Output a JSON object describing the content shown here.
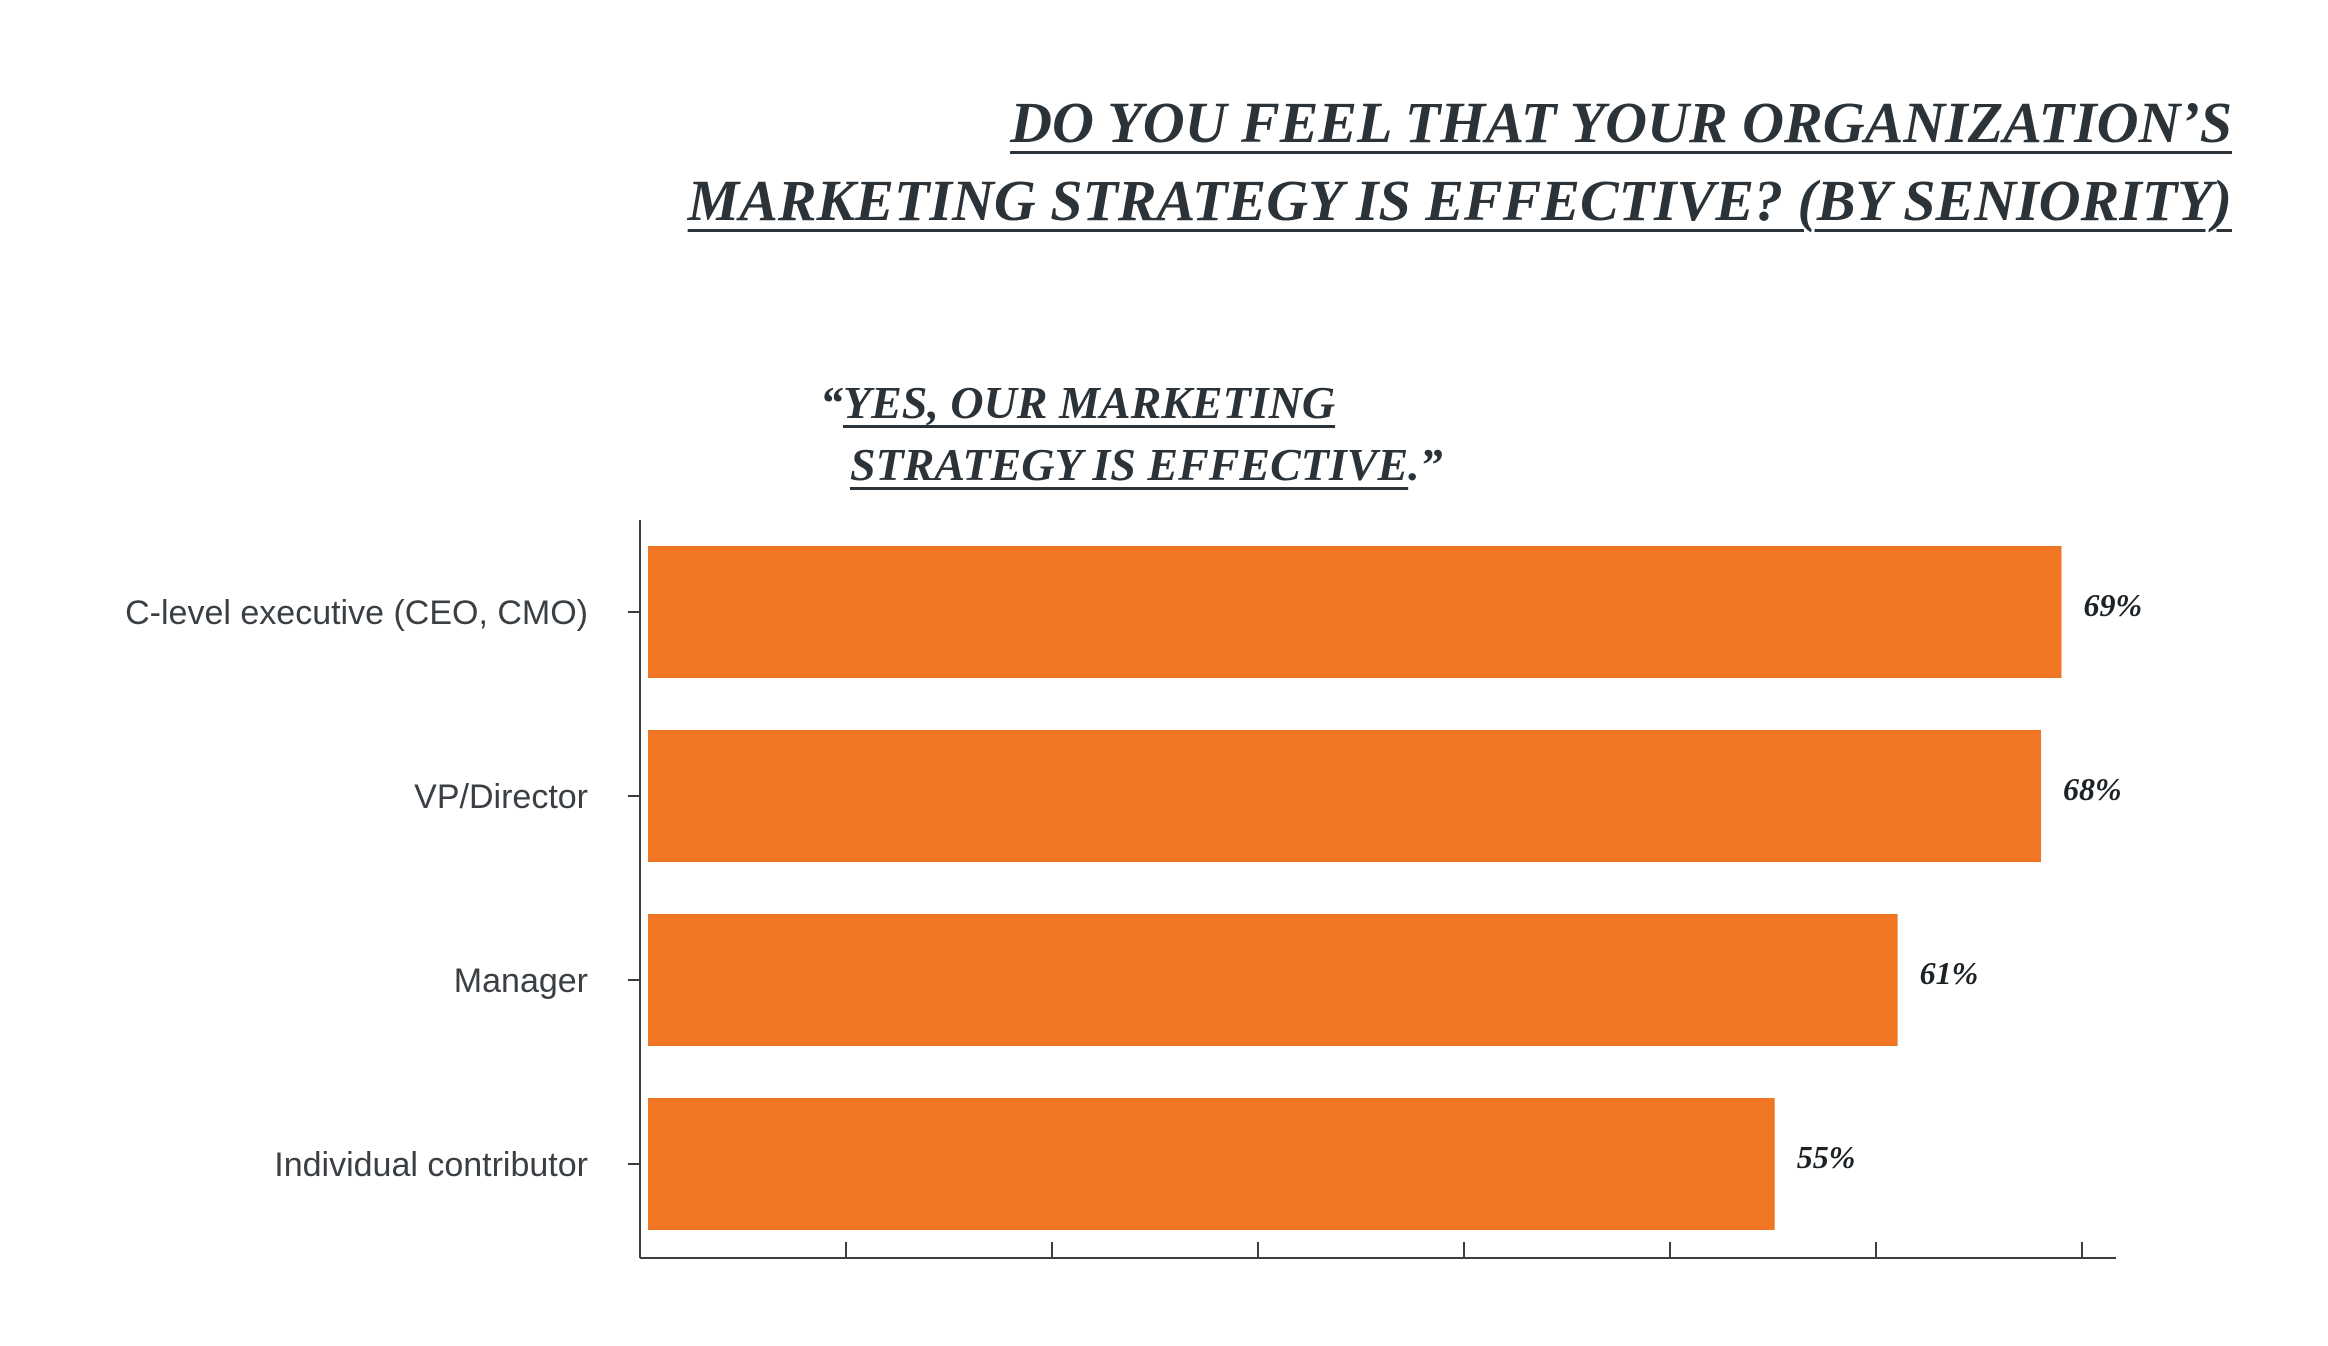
{
  "header": {
    "title_line1": "DO YOU FEEL THAT YOUR ORGANIZATION’S",
    "title_line2": "MARKETING STRATEGY IS EFFECTIVE? (BY SENIORITY)",
    "subtitle_open_quote": "“",
    "subtitle_line1": "YES, OUR MARKETING",
    "subtitle_line2": "STRATEGY IS EFFECTIVE",
    "subtitle_close": ".”"
  },
  "colors": {
    "bar": "#f07623",
    "axis": "#3a3f44",
    "text": "#2b3339"
  },
  "chart_data": {
    "type": "bar",
    "orientation": "horizontal",
    "categories": [
      "C-level executive (CEO, CMO)",
      "VP/Director",
      "Manager",
      "Individual contributor"
    ],
    "values": [
      69,
      68,
      61,
      55
    ],
    "value_labels": [
      "69%",
      "68%",
      "61%",
      "55%"
    ],
    "unit": "%",
    "xlim": [
      0,
      70
    ],
    "x_ticks": [
      0,
      10,
      20,
      30,
      40,
      50,
      60,
      70
    ],
    "grid": false,
    "legend": "none"
  }
}
